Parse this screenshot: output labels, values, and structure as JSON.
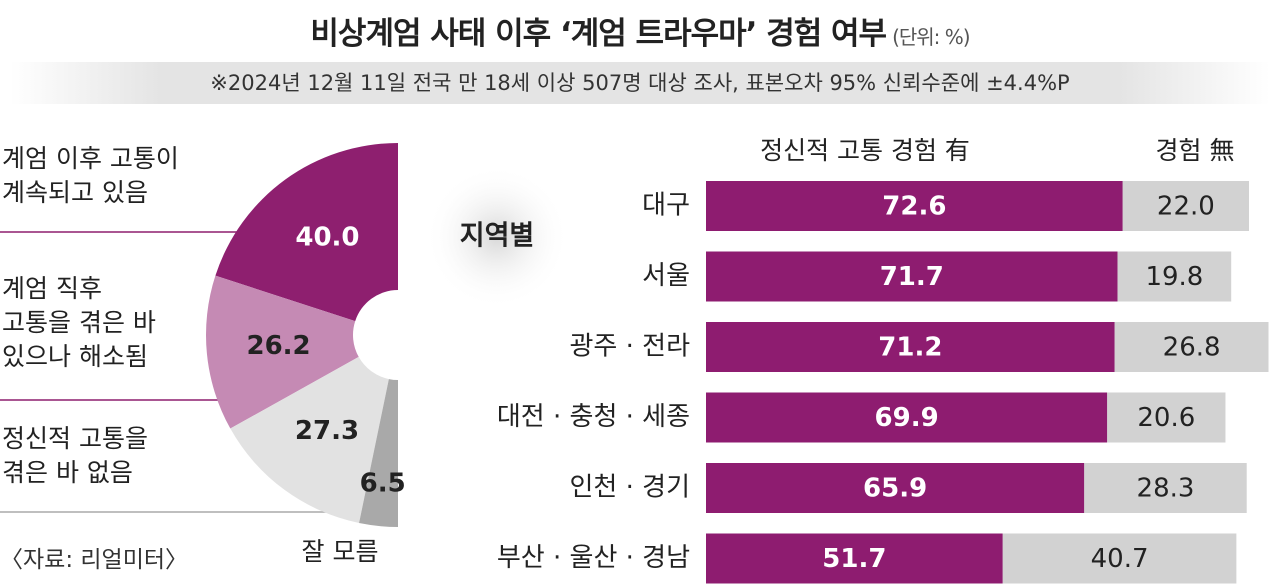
{
  "header": {
    "title": "비상계엄 사태 이후 ‘계엄 트라우마’ 경험 여부",
    "unit": "(단위: %)",
    "note": "※2024년 12월 11일 전국 만 18세 이상 507명 대상 조사, 표본오차 95% 신뢰수준에 ±4.4%P"
  },
  "source": "〈자료: 리얼미터〉",
  "chart_data": [
    {
      "type": "pie",
      "categories": [
        "계엄 이후 고통이\n계속되고 있음",
        "계엄 직후\n고통을 겪은 바\n있으나 해소됨",
        "정신적 고통을\n겪은 바 없음",
        "잘 모름"
      ],
      "values": [
        40.0,
        26.2,
        27.3,
        6.5
      ],
      "value_labels": [
        "40.0",
        "26.2",
        "27.3",
        "6.5"
      ],
      "colors": [
        "#8e1f6f",
        "#c58ab4",
        "#e2e2e2",
        "#a9a9a9"
      ]
    },
    {
      "type": "bar",
      "stacked": true,
      "orientation": "horizontal",
      "title": "지역별",
      "categories": [
        "대구",
        "서울",
        "광주 · 전라",
        "대전 · 충청 · 세종",
        "인천 · 경기",
        "부산 · 울산 · 경남"
      ],
      "series": [
        {
          "name": "정신적 고통 경험 有",
          "color": "#8e1c70",
          "values": [
            72.6,
            71.7,
            71.2,
            69.9,
            65.9,
            51.7
          ],
          "value_labels": [
            "72.6",
            "71.7",
            "71.2",
            "69.9",
            "65.9",
            "51.7"
          ]
        },
        {
          "name": "경험 無",
          "color": "#d2d2d2",
          "values": [
            22.0,
            19.8,
            26.8,
            20.6,
            28.3,
            40.7
          ],
          "value_labels": [
            "22.0",
            "19.8",
            "26.8",
            "20.6",
            "28.3",
            "40.7"
          ]
        }
      ],
      "xlim": [
        0,
        100
      ]
    }
  ]
}
